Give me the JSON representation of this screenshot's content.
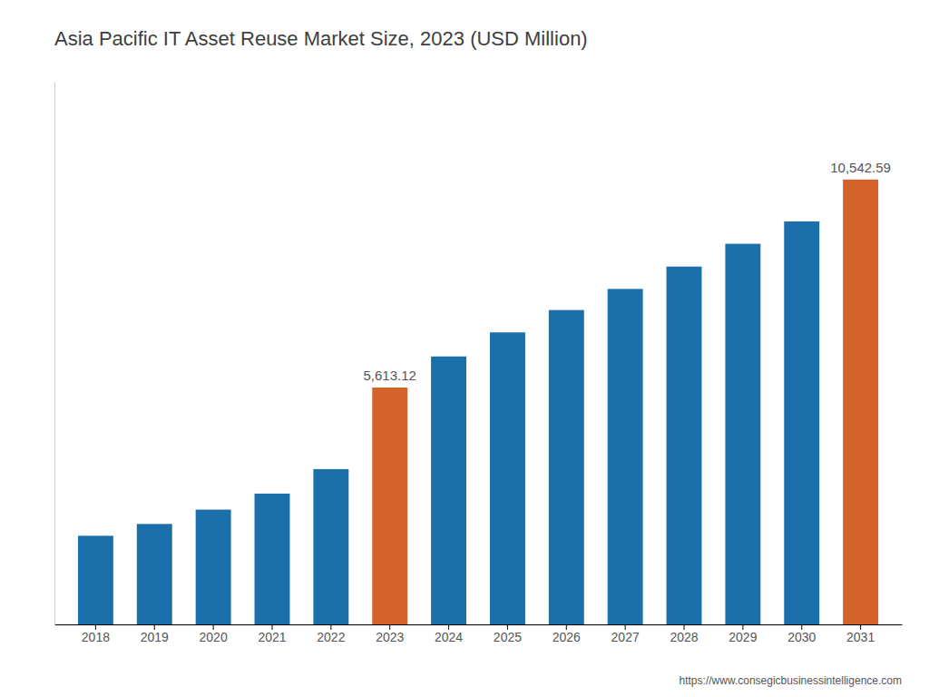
{
  "chart_data": {
    "type": "bar",
    "title": "Asia Pacific IT Asset Reuse Market Size, 2023 (USD Million)",
    "categories": [
      "2018",
      "2019",
      "2020",
      "2021",
      "2022",
      "2023",
      "2024",
      "2025",
      "2026",
      "2027",
      "2028",
      "2029",
      "2030",
      "2031"
    ],
    "values": [
      2100,
      2380,
      2720,
      3100,
      3680,
      5613.12,
      6350,
      6920,
      7450,
      7950,
      8480,
      9020,
      9550,
      10542.59
    ],
    "value_labels": [
      null,
      null,
      null,
      null,
      null,
      "5,613.12",
      null,
      null,
      null,
      null,
      null,
      null,
      null,
      "10,542.59"
    ],
    "data_labels": true,
    "colors": [
      "#1b6faa",
      "#1b6faa",
      "#1b6faa",
      "#1b6faa",
      "#1b6faa",
      "#d4622b",
      "#1b6faa",
      "#1b6faa",
      "#1b6faa",
      "#1b6faa",
      "#1b6faa",
      "#1b6faa",
      "#1b6faa",
      "#d4622b"
    ],
    "ylim": [
      0,
      12861.9598
    ],
    "tick_labels": "x",
    "grid": false,
    "annotations": [
      "https://www.consegicbusinessintelligence.com"
    ]
  }
}
